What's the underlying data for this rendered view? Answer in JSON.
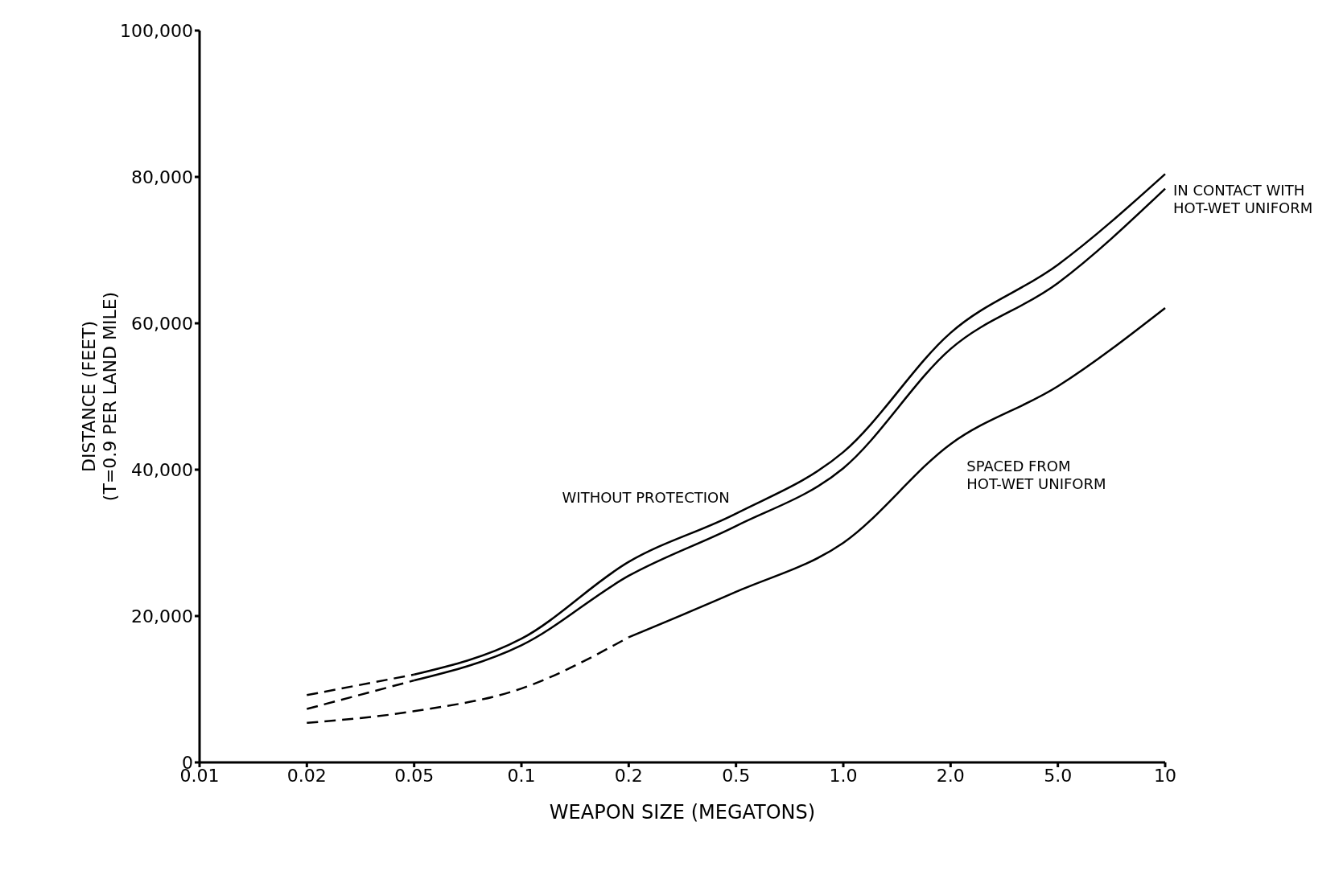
{
  "chart_data": {
    "type": "line",
    "xlabel": "WEAPON SIZE (MEGATONS)",
    "ylabel": "DISTANCE (FEET)\n(T=0.9 PER LAND MILE)",
    "categories": [
      "0.01",
      "0.02",
      "0.05",
      "0.1",
      "0.2",
      "0.5",
      "1.0",
      "2.0",
      "5.0",
      "10"
    ],
    "series": [
      {
        "color": "#000000",
        "line_style": "dashed",
        "values": [
          null,
          9200,
          12000,
          null,
          null,
          null,
          null,
          null,
          null,
          null
        ]
      },
      {
        "name": "WITHOUT PROTECTION",
        "color": "#000000",
        "line_style": "solid",
        "values": [
          null,
          null,
          12000,
          16900,
          27400,
          34000,
          42400,
          58700,
          68000,
          80400
        ]
      },
      {
        "color": "#000000",
        "line_style": "dashed",
        "values": [
          null,
          7300,
          11200,
          null,
          null,
          null,
          null,
          null,
          null,
          null
        ]
      },
      {
        "name": "IN CONTACT WITH HOT-WET UNIFORM",
        "color": "#000000",
        "line_style": "solid",
        "values": [
          null,
          null,
          11200,
          16000,
          25500,
          32300,
          40200,
          56500,
          65500,
          78400
        ]
      },
      {
        "color": "#000000",
        "line_style": "dashed",
        "values": [
          null,
          5400,
          7000,
          10100,
          17100,
          null,
          null,
          null,
          null,
          null
        ]
      },
      {
        "name": "SPACED FROM HOT-WET UNIFORM",
        "color": "#000000",
        "line_style": "solid",
        "values": [
          null,
          null,
          null,
          null,
          17100,
          23300,
          30000,
          43500,
          51400,
          62100
        ]
      }
    ],
    "ylim": [
      0,
      100000
    ],
    "yticks": [
      {
        "value": 0,
        "label": "0"
      },
      {
        "value": 20000,
        "label": "20,000"
      },
      {
        "value": 40000,
        "label": "40,000"
      },
      {
        "value": 60000,
        "label": "60,000"
      },
      {
        "value": 80000,
        "label": "80,000"
      },
      {
        "value": 100000,
        "label": "100,000"
      }
    ],
    "grid": false,
    "legend": false,
    "marker": "none"
  }
}
